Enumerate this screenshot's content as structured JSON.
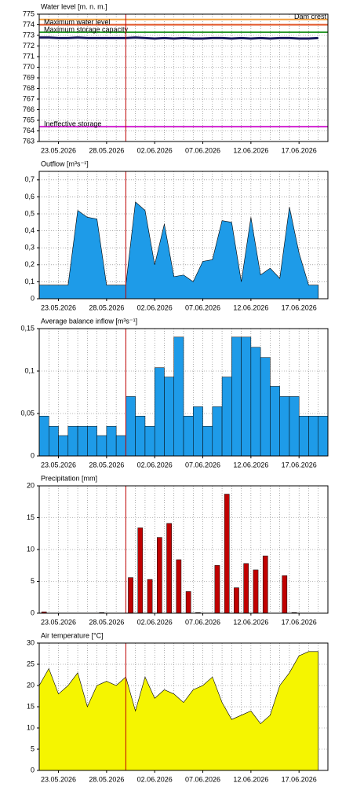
{
  "chart_data": [
    {
      "type": "line",
      "title": "Water level [m. n. m.]",
      "x": [
        "21.05.2026",
        "22.05.2026",
        "23.05.2026",
        "24.05.2026",
        "25.05.2026",
        "26.05.2026",
        "27.05.2026",
        "28.05.2026",
        "29.05.2026",
        "30.05.2026",
        "31.05.2026",
        "01.06.2026",
        "02.06.2026",
        "03.06.2026",
        "04.06.2026",
        "05.06.2026",
        "06.06.2026",
        "07.06.2026",
        "08.06.2026",
        "09.06.2026",
        "10.06.2026",
        "11.06.2026",
        "12.06.2026",
        "13.06.2026",
        "14.06.2026",
        "15.06.2026",
        "16.06.2026",
        "17.06.2026",
        "18.06.2026",
        "19.06.2026"
      ],
      "values": [
        772.8,
        772.8,
        772.75,
        772.75,
        772.8,
        772.75,
        772.75,
        772.75,
        772.75,
        772.75,
        772.8,
        772.75,
        772.7,
        772.75,
        772.7,
        772.75,
        772.7,
        772.7,
        772.75,
        772.75,
        772.7,
        772.75,
        772.7,
        772.75,
        772.7,
        772.75,
        772.75,
        772.7,
        772.7,
        772.75
      ],
      "color": "#1a1a5e",
      "reference_lines": [
        {
          "label": "Dam crest",
          "value": 774.5,
          "color": "#f0a040"
        },
        {
          "label": "Maximum water level",
          "value": 774.0,
          "color": "#e05020"
        },
        {
          "label": "Maximum storage capacity",
          "value": 773.3,
          "color": "#2e9a2e"
        },
        {
          "label": "Ineffective storage",
          "value": 764.4,
          "color": "#d020d0"
        }
      ],
      "xlim": [
        "21.05.2026",
        "20.06.2026"
      ],
      "xticks": [
        "23.05.2026",
        "28.05.2026",
        "02.06.2026",
        "07.06.2026",
        "12.06.2026",
        "17.06.2026"
      ],
      "ylim": [
        763,
        775
      ],
      "yticks": [
        763,
        764,
        765,
        766,
        767,
        768,
        769,
        770,
        771,
        772,
        773,
        774,
        775
      ],
      "grid": true,
      "marker_line": {
        "x": "30.05.2026",
        "color": "#c00000"
      }
    },
    {
      "type": "area",
      "title": "Outflow [m³s⁻¹]",
      "x": [
        "21.05.2026",
        "22.05.2026",
        "23.05.2026",
        "24.05.2026",
        "25.05.2026",
        "26.05.2026",
        "27.05.2026",
        "28.05.2026",
        "29.05.2026",
        "30.05.2026",
        "31.05.2026",
        "01.06.2026",
        "02.06.2026",
        "03.06.2026",
        "04.06.2026",
        "05.06.2026",
        "06.06.2026",
        "07.06.2026",
        "08.06.2026",
        "09.06.2026",
        "10.06.2026",
        "11.06.2026",
        "12.06.2026",
        "13.06.2026",
        "14.06.2026",
        "15.06.2026",
        "16.06.2026",
        "17.06.2026",
        "18.06.2026",
        "19.06.2026"
      ],
      "values": [
        0.08,
        0.08,
        0.08,
        0.08,
        0.52,
        0.48,
        0.47,
        0.08,
        0.08,
        0.08,
        0.57,
        0.52,
        0.2,
        0.44,
        0.13,
        0.14,
        0.1,
        0.22,
        0.23,
        0.46,
        0.45,
        0.1,
        0.48,
        0.14,
        0.18,
        0.12,
        0.54,
        0.27,
        0.08,
        0.08
      ],
      "color": "#1e9be8",
      "xlim": [
        "21.05.2026",
        "20.06.2026"
      ],
      "xticks": [
        "23.05.2026",
        "28.05.2026",
        "02.06.2026",
        "07.06.2026",
        "12.06.2026",
        "17.06.2026"
      ],
      "ylim": [
        0,
        0.75
      ],
      "yticks": [
        0,
        {
          "value": 0.1,
          "label": "0,1"
        },
        {
          "value": 0.2,
          "label": "0,2"
        },
        {
          "value": 0.3,
          "label": "0,3"
        },
        {
          "value": 0.4,
          "label": "0,4"
        },
        {
          "value": 0.5,
          "label": "0,5"
        },
        {
          "value": 0.6,
          "label": "0,6"
        },
        {
          "value": 0.7,
          "label": "0,7"
        }
      ],
      "grid": true,
      "marker_line": {
        "x": "30.05.2026",
        "color": "#c00000"
      }
    },
    {
      "type": "step-area",
      "title": "Average balance inflow [m³s⁻¹]",
      "x": [
        "21.05.2026",
        "22.05.2026",
        "23.05.2026",
        "24.05.2026",
        "25.05.2026",
        "26.05.2026",
        "27.05.2026",
        "28.05.2026",
        "29.05.2026",
        "30.05.2026",
        "31.05.2026",
        "01.06.2026",
        "02.06.2026",
        "03.06.2026",
        "04.06.2026",
        "05.06.2026",
        "06.06.2026",
        "07.06.2026",
        "08.06.2026",
        "09.06.2026",
        "10.06.2026",
        "11.06.2026",
        "12.06.2026",
        "13.06.2026",
        "14.06.2026",
        "15.06.2026",
        "16.06.2026",
        "17.06.2026",
        "18.06.2026",
        "19.06.2026"
      ],
      "values": [
        0.047,
        0.035,
        0.024,
        0.035,
        0.035,
        0.035,
        0.024,
        0.035,
        0.024,
        0.07,
        0.047,
        0.035,
        0.104,
        0.093,
        0.14,
        0.047,
        0.058,
        0.035,
        0.058,
        0.093,
        0.14,
        0.14,
        0.128,
        0.116,
        0.082,
        0.07,
        0.07,
        0.047,
        0.047,
        0.047
      ],
      "color": "#1e9be8",
      "xlim": [
        "21.05.2026",
        "20.06.2026"
      ],
      "xticks": [
        "23.05.2026",
        "28.05.2026",
        "02.06.2026",
        "07.06.2026",
        "12.06.2026",
        "17.06.2026"
      ],
      "ylim": [
        0,
        0.15
      ],
      "yticks": [
        0,
        {
          "value": 0.05,
          "label": "0,05"
        },
        {
          "value": 0.1,
          "label": "0,1"
        },
        {
          "value": 0.15,
          "label": "0,15"
        }
      ],
      "grid": true,
      "marker_line": {
        "x": "30.05.2026",
        "color": "#c00000"
      }
    },
    {
      "type": "bar",
      "title": "Precipitation [mm]",
      "x": [
        "21.05.2026",
        "22.05.2026",
        "23.05.2026",
        "24.05.2026",
        "25.05.2026",
        "26.05.2026",
        "27.05.2026",
        "28.05.2026",
        "29.05.2026",
        "30.05.2026",
        "31.05.2026",
        "01.06.2026",
        "02.06.2026",
        "03.06.2026",
        "04.06.2026",
        "05.06.2026",
        "06.06.2026",
        "07.06.2026",
        "08.06.2026",
        "09.06.2026",
        "10.06.2026",
        "11.06.2026",
        "12.06.2026",
        "13.06.2026",
        "14.06.2026",
        "15.06.2026",
        "16.06.2026",
        "17.06.2026",
        "18.06.2026",
        "19.06.2026"
      ],
      "values": [
        0.2,
        0,
        0,
        0,
        0,
        0,
        0.1,
        0,
        0,
        5.6,
        13.4,
        5.3,
        11.9,
        14.1,
        8.4,
        3.4,
        0.1,
        0,
        7.5,
        18.7,
        4.0,
        7.8,
        6.8,
        9.0,
        0,
        5.9,
        0.1,
        0,
        0,
        0
      ],
      "color": "#c00000",
      "xlim": [
        "21.05.2026",
        "20.06.2026"
      ],
      "xticks": [
        "23.05.2026",
        "28.05.2026",
        "02.06.2026",
        "07.06.2026",
        "12.06.2026",
        "17.06.2026"
      ],
      "ylim": [
        0,
        20
      ],
      "yticks": [
        0,
        5,
        10,
        15,
        20
      ],
      "grid": true,
      "marker_line": {
        "x": "30.05.2026",
        "color": "#c00000"
      }
    },
    {
      "type": "area",
      "title": "Air temperature [°C]",
      "x": [
        "21.05.2026",
        "22.05.2026",
        "23.05.2026",
        "24.05.2026",
        "25.05.2026",
        "26.05.2026",
        "27.05.2026",
        "28.05.2026",
        "29.05.2026",
        "30.05.2026",
        "31.05.2026",
        "01.06.2026",
        "02.06.2026",
        "03.06.2026",
        "04.06.2026",
        "05.06.2026",
        "06.06.2026",
        "07.06.2026",
        "08.06.2026",
        "09.06.2026",
        "10.06.2026",
        "11.06.2026",
        "12.06.2026",
        "13.06.2026",
        "14.06.2026",
        "15.06.2026",
        "16.06.2026",
        "17.06.2026",
        "18.06.2026",
        "19.06.2026"
      ],
      "values": [
        20,
        24,
        18,
        20,
        23,
        15,
        20,
        21,
        20,
        22,
        14,
        22,
        17,
        19,
        18,
        16,
        19,
        20,
        22,
        16,
        12,
        13,
        14,
        11,
        13,
        20,
        23,
        27,
        28,
        28
      ],
      "color": "#f5f500",
      "xlim": [
        "21.05.2026",
        "20.06.2026"
      ],
      "xticks": [
        "23.05.2026",
        "28.05.2026",
        "02.06.2026",
        "07.06.2026",
        "12.06.2026",
        "17.06.2026"
      ],
      "ylim": [
        0,
        30
      ],
      "yticks": [
        0,
        5,
        10,
        15,
        20,
        25,
        30
      ],
      "grid": true,
      "marker_line": {
        "x": "30.05.2026",
        "color": "#c00000"
      }
    }
  ]
}
